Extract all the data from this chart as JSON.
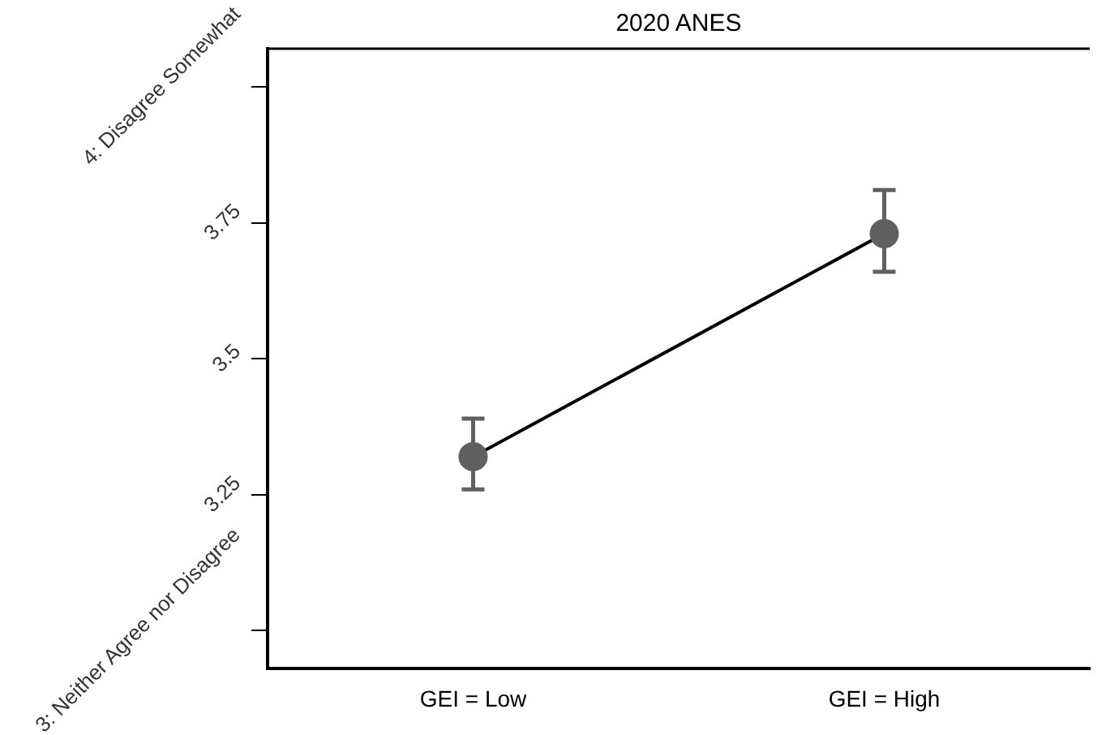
{
  "chart_data": {
    "type": "line",
    "title": "2020 ANES",
    "categories": [
      "GEI = Low",
      "GEI = High"
    ],
    "series": [
      {
        "color": "#606060",
        "values": [
          3.32,
          3.73
        ],
        "errors": [
          [
            3.26,
            3.39
          ],
          [
            3.66,
            3.81
          ]
        ]
      }
    ],
    "ylim": [
      2.93,
      4.07
    ],
    "yticks": [
      {
        "value": 3,
        "label": "3: Neither Agree nor Disagree"
      },
      3.25,
      3.5,
      3.75,
      {
        "value": 4,
        "label": "4: Disagree Somewhat"
      }
    ],
    "grid": false,
    "legend": false,
    "marker": "circle",
    "line_style": "solid"
  }
}
